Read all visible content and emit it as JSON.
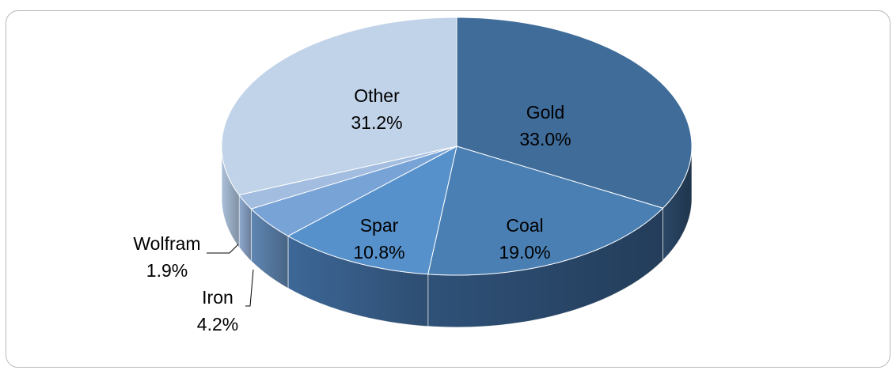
{
  "chart_data": {
    "type": "pie",
    "style": "3d-exploded-none",
    "title": "",
    "categories": [
      "Gold",
      "Coal",
      "Spar",
      "Iron",
      "Wolfram",
      "Other"
    ],
    "values": [
      33.0,
      19.0,
      10.8,
      4.2,
      1.9,
      31.2
    ],
    "value_labels": [
      "33.0%",
      "19.0%",
      "10.8%",
      "4.2%",
      "1.9%",
      "31.2%"
    ],
    "colors": [
      "#3f6c99",
      "#4a7fb3",
      "#5791cb",
      "#78a3d6",
      "#a3bde0",
      "#c1d3e8"
    ],
    "side_colors": [
      "#2a4766",
      "#2f5178",
      "#3d6797",
      "#5f86b2",
      "#8fa9cf",
      "#aac0da"
    ],
    "label_color": "#000000"
  }
}
